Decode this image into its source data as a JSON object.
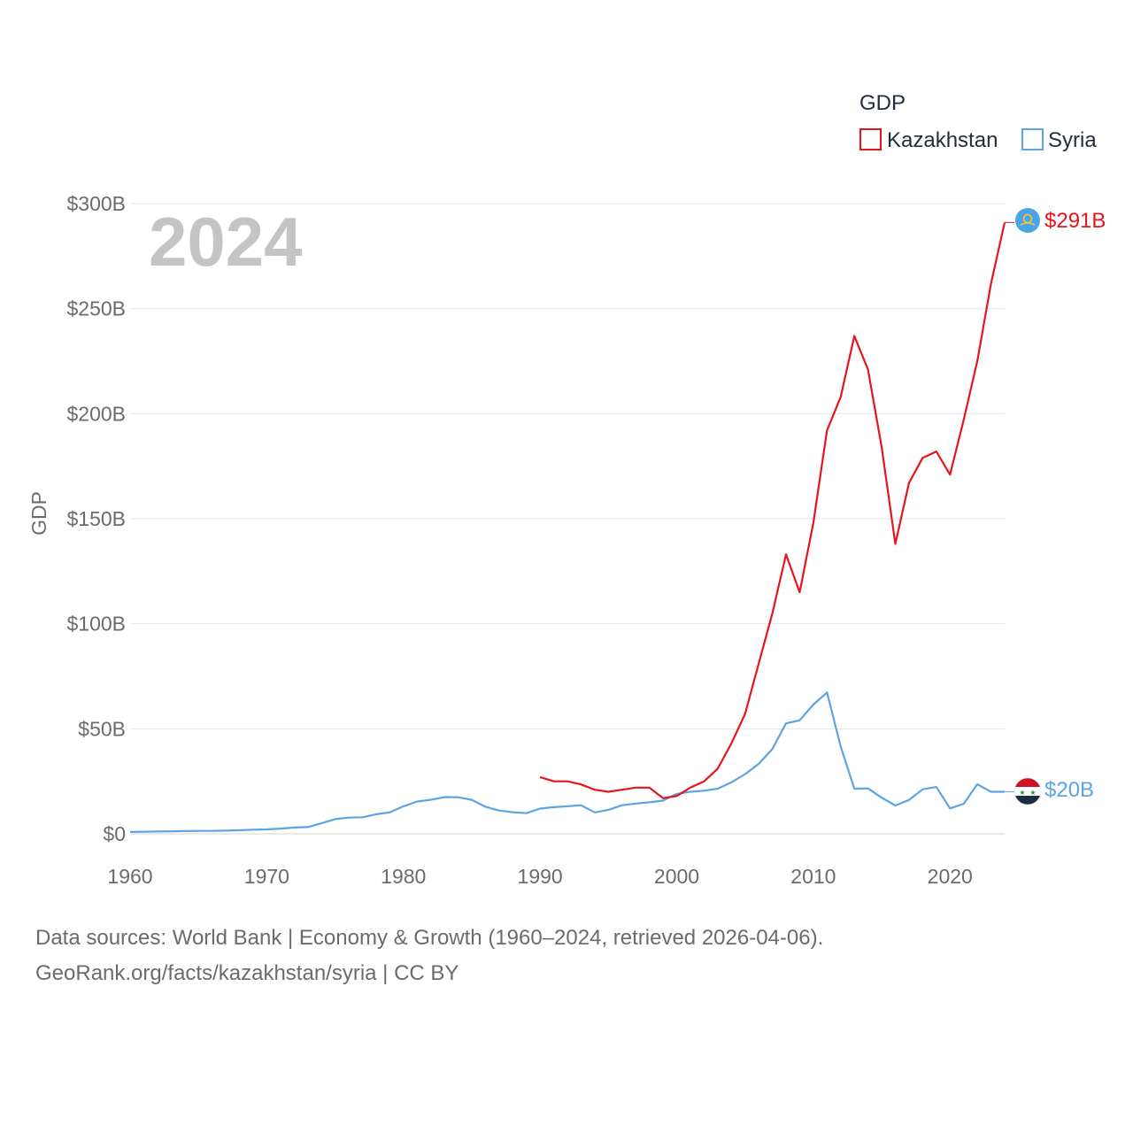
{
  "chart_data": {
    "type": "line",
    "title": "",
    "xlabel": "",
    "ylabel": "GDP",
    "year_watermark": "2024",
    "legend_title": "GDP",
    "xlim": [
      1960,
      2024
    ],
    "ylim": [
      0,
      300
    ],
    "x_ticks": [
      1960,
      1970,
      1980,
      1990,
      2000,
      2010,
      2020
    ],
    "x_tick_labels": [
      "1960",
      "1970",
      "1980",
      "1990",
      "2000",
      "2010",
      "2020"
    ],
    "y_ticks": [
      0,
      50,
      100,
      150,
      200,
      250,
      300
    ],
    "y_tick_labels": [
      "$0",
      "$50B",
      "$100B",
      "$150B",
      "$200B",
      "$250B",
      "$300B"
    ],
    "series": [
      {
        "name": "Kazakhstan",
        "color": "#e8141b",
        "end_label": "$291B",
        "flag_icon": "kazakhstan-flag-icon",
        "x": [
          1990,
          1991,
          1992,
          1993,
          1994,
          1995,
          1996,
          1997,
          1998,
          1999,
          2000,
          2001,
          2002,
          2003,
          2004,
          2005,
          2006,
          2007,
          2008,
          2009,
          2010,
          2011,
          2012,
          2013,
          2014,
          2015,
          2016,
          2017,
          2018,
          2019,
          2020,
          2021,
          2022,
          2023,
          2024
        ],
        "values": [
          27,
          25,
          25,
          23.5,
          21,
          20,
          21,
          22,
          22,
          17,
          18,
          22,
          25,
          31,
          43,
          57,
          81,
          105,
          133,
          115,
          148,
          192,
          208,
          237,
          221,
          184,
          138,
          167,
          179,
          182,
          171,
          197,
          225,
          262,
          291
        ]
      },
      {
        "name": "Syria",
        "color": "#5ba4e5",
        "end_label": "$20B",
        "flag_icon": "syria-flag-icon",
        "x": [
          1960,
          1961,
          1962,
          1963,
          1964,
          1965,
          1966,
          1967,
          1968,
          1969,
          1970,
          1971,
          1972,
          1973,
          1974,
          1975,
          1976,
          1977,
          1978,
          1979,
          1980,
          1981,
          1982,
          1983,
          1984,
          1985,
          1986,
          1987,
          1988,
          1989,
          1990,
          1991,
          1992,
          1993,
          1994,
          1995,
          1996,
          1997,
          1998,
          1999,
          2000,
          2001,
          2002,
          2003,
          2004,
          2005,
          2006,
          2007,
          2008,
          2009,
          2010,
          2011,
          2012,
          2013,
          2014,
          2015,
          2016,
          2017,
          2018,
          2019,
          2020,
          2021,
          2022,
          2023,
          2024
        ],
        "values": [
          0.9,
          1.0,
          1.1,
          1.2,
          1.3,
          1.4,
          1.4,
          1.5,
          1.7,
          2.0,
          2.1,
          2.5,
          3.0,
          3.2,
          5.0,
          7.0,
          7.7,
          7.9,
          9.3,
          10.2,
          13.1,
          15.4,
          16.2,
          17.5,
          17.4,
          16.2,
          12.9,
          11.1,
          10.3,
          9.8,
          12.0,
          12.7,
          13.1,
          13.6,
          10.2,
          11.4,
          13.6,
          14.4,
          15.0,
          15.8,
          19.0,
          20.0,
          20.5,
          21.5,
          24.5,
          28.4,
          33.3,
          40.4,
          52.6,
          54.0,
          61.5,
          67.3,
          41.5,
          21.5,
          21.6,
          17.2,
          13.5,
          16.1,
          21.2,
          22.3,
          12.1,
          14.3,
          23.6,
          20.0,
          20.0
        ]
      }
    ]
  },
  "footer": {
    "line1": "Data sources: World Bank | Economy & Growth (1960–2024, retrieved 2026-04-06).",
    "line2": "GeoRank.org/facts/kazakhstan/syria | CC BY"
  }
}
